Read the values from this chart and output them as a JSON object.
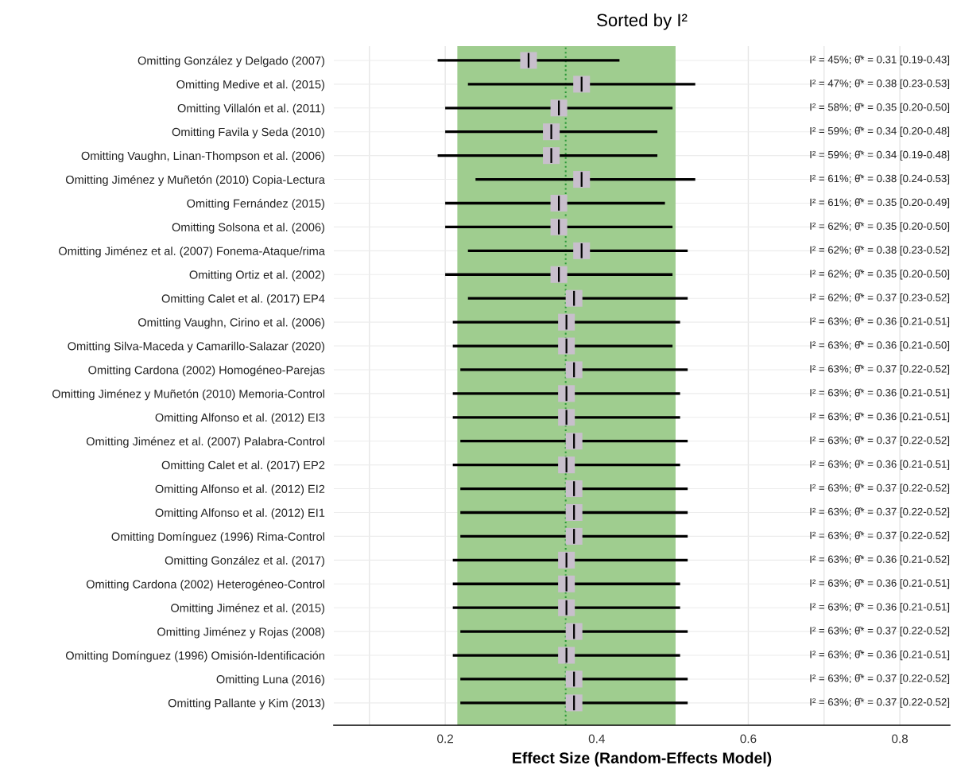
{
  "chart_data": {
    "type": "bar",
    "title": "Sorted by I²",
    "xlabel": "Effect Size (Random-Effects Model)",
    "categories": [
      "Omitting González y Delgado (2007)",
      "Omitting Medive et al. (2015)",
      "Omitting Villalón et al. (2011)",
      "Omitting Favila y Seda (2010)",
      "Omitting Vaughn, Linan-Thompson et al. (2006)",
      "Omitting Jiménez y Muñetón (2010) Copia-Lectura",
      "Omitting Fernández (2015)",
      "Omitting Solsona et al. (2006)",
      "Omitting Jiménez et al. (2007) Fonema-Ataque/rima",
      "Omitting Ortiz et al. (2002)",
      "Omitting Calet et al. (2017) EP4",
      "Omitting Vaughn, Cirino et al. (2006)",
      "Omitting Silva-Maceda y Camarillo-Salazar (2020)",
      "Omitting Cardona (2002) Homogéneo-Parejas",
      "Omitting Jiménez y Muñetón (2010) Memoria-Control",
      "Omitting Alfonso et al. (2012) EI3",
      "Omitting Jiménez et al. (2007) Palabra-Control",
      "Omitting Calet et al. (2017) EP2",
      "Omitting Alfonso et al. (2012) EI2",
      "Omitting Alfonso et al. (2012) EI1",
      "Omitting Domínguez (1996) Rima-Control",
      "Omitting González et al. (2017)",
      "Omitting Cardona (2002) Heterogéneo-Control",
      "Omitting Jiménez et al. (2015)",
      "Omitting Jiménez y Rojas (2008)",
      "Omitting Domínguez (1996) Omisión-Identificación",
      "Omitting Luna (2016)",
      "Omitting Pallante y Kim (2013)"
    ],
    "orientation": "horizontal",
    "series": [
      {
        "color": "#000000",
        "base": [
          0.19,
          0.23,
          0.2,
          0.2,
          0.19,
          0.24,
          0.2,
          0.2,
          0.23,
          0.2,
          0.23,
          0.21,
          0.21,
          0.22,
          0.21,
          0.21,
          0.22,
          0.21,
          0.22,
          0.22,
          0.22,
          0.21,
          0.21,
          0.21,
          0.22,
          0.21,
          0.22,
          0.22
        ],
        "values": [
          0.24,
          0.3,
          0.3,
          0.28,
          0.29,
          0.29,
          0.29,
          0.3,
          0.29,
          0.3,
          0.29,
          0.3,
          0.29,
          0.3,
          0.3,
          0.3,
          0.3,
          0.3,
          0.3,
          0.3,
          0.3,
          0.31,
          0.3,
          0.3,
          0.3,
          0.3,
          0.3,
          0.3
        ]
      },
      {
        "type": "scatter",
        "color": "#c8bfcc",
        "values": [
          0.31,
          0.38,
          0.35,
          0.34,
          0.34,
          0.38,
          0.35,
          0.35,
          0.38,
          0.35,
          0.37,
          0.36,
          0.36,
          0.37,
          0.36,
          0.36,
          0.37,
          0.36,
          0.37,
          0.37,
          0.37,
          0.36,
          0.36,
          0.36,
          0.37,
          0.36,
          0.37,
          0.37
        ]
      }
    ],
    "annotations": [
      "I² = 45%; θ̂* = 0.31 [0.19-0.43]",
      "I² = 47%; θ̂* = 0.38 [0.23-0.53]",
      "I² = 58%; θ̂* = 0.35 [0.20-0.50]",
      "I² = 59%; θ̂* = 0.34 [0.20-0.48]",
      "I² = 59%; θ̂* = 0.34 [0.19-0.48]",
      "I² = 61%; θ̂* = 0.38 [0.24-0.53]",
      "I² = 61%; θ̂* = 0.35 [0.20-0.49]",
      "I² = 62%; θ̂* = 0.35 [0.20-0.50]",
      "I² = 62%; θ̂* = 0.38 [0.23-0.52]",
      "I² = 62%; θ̂* = 0.35 [0.20-0.50]",
      "I² = 62%; θ̂* = 0.37 [0.23-0.52]",
      "I² = 63%; θ̂* = 0.36 [0.21-0.51]",
      "I² = 63%; θ̂* = 0.36 [0.21-0.50]",
      "I² = 63%; θ̂* = 0.37 [0.22-0.52]",
      "I² = 63%; θ̂* = 0.36 [0.21-0.51]",
      "I² = 63%; θ̂* = 0.36 [0.21-0.51]",
      "I² = 63%; θ̂* = 0.37 [0.22-0.52]",
      "I² = 63%; θ̂* = 0.36 [0.21-0.51]",
      "I² = 63%; θ̂* = 0.37 [0.22-0.52]",
      "I² = 63%; θ̂* = 0.37 [0.22-0.52]",
      "I² = 63%; θ̂* = 0.37 [0.22-0.52]",
      "I² = 63%; θ̂* = 0.36 [0.21-0.52]",
      "I² = 63%; θ̂* = 0.36 [0.21-0.51]",
      "I² = 63%; θ̂* = 0.36 [0.21-0.51]",
      "I² = 63%; θ̂* = 0.37 [0.22-0.52]",
      "I² = 63%; θ̂* = 0.36 [0.21-0.51]",
      "I² = 63%; θ̂* = 0.37 [0.22-0.52]",
      "I² = 63%; θ̂* = 0.37 [0.22-0.52]"
    ],
    "xlim": [
      0.053,
      0.866
    ],
    "xticks": [
      {
        "value": 0.1,
        "label": null
      },
      0.2,
      0.4,
      0.6,
      {
        "value": 0.7,
        "label": null
      },
      0.8
    ],
    "bands": [
      {
        "axis": "x",
        "from": 0.216,
        "to": 0.504,
        "color": "#9fcd8f"
      }
    ],
    "ref_lines": [
      {
        "axis": "x",
        "value": 0.359,
        "color": "#2e9a3a",
        "line_style": "dotted"
      }
    ],
    "grid": true,
    "marker": "square"
  }
}
